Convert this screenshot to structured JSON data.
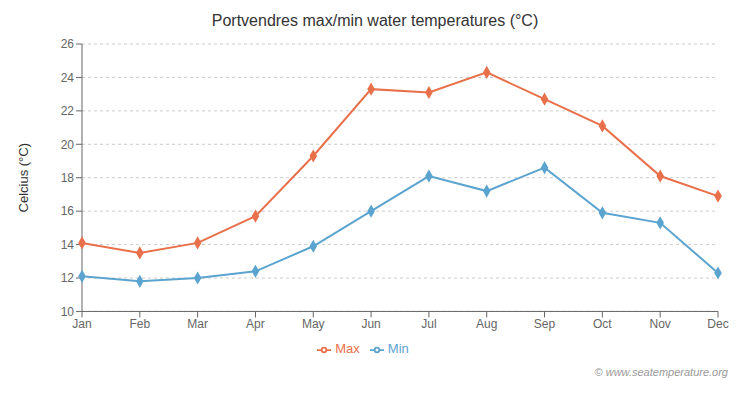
{
  "chart_data": {
    "type": "line",
    "title": "Portvendres max/min water temperatures (°C)",
    "ylabel": "Celcius (°C)",
    "categories": [
      "Jan",
      "Feb",
      "Mar",
      "Apr",
      "May",
      "Jun",
      "Jul",
      "Aug",
      "Sep",
      "Oct",
      "Nov",
      "Dec"
    ],
    "series": [
      {
        "name": "Max",
        "color": "#e8704a",
        "marker": "diamond",
        "values": [
          14.1,
          13.5,
          14.1,
          15.7,
          19.3,
          23.3,
          23.1,
          24.3,
          22.7,
          21.1,
          18.1,
          16.9
        ]
      },
      {
        "name": "Min",
        "color": "#5ba4cf",
        "marker": "diamond",
        "values": [
          12.1,
          11.8,
          12.0,
          12.4,
          13.9,
          16.0,
          18.1,
          17.2,
          18.6,
          15.9,
          15.3,
          12.3
        ]
      }
    ],
    "ylim": [
      10,
      26
    ],
    "yticks": [
      10,
      12,
      14,
      16,
      18,
      20,
      22,
      24,
      26
    ],
    "grid": true,
    "legend": "bottom",
    "annotations": [
      "© www.seatemperature.org"
    ]
  }
}
